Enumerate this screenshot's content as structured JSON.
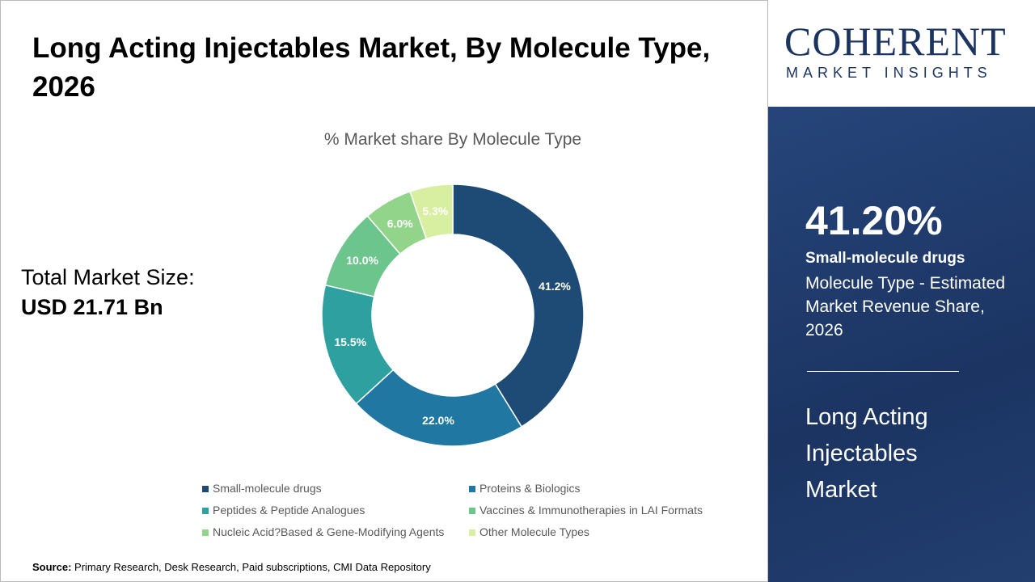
{
  "title": "Long Acting Injectables Market, By Molecule Type, 2026",
  "total": {
    "label": "Total Market Size:",
    "value": "USD 21.71 Bn"
  },
  "source": {
    "label": "Source:",
    "text": " Primary Research, Desk Research, Paid subscriptions, CMI Data Repository"
  },
  "logo": {
    "brand": "COHERENT",
    "tagline": "MARKET INSIGHTS"
  },
  "panel": {
    "percent": "41.20%",
    "segment": "Small-molecule drugs",
    "description": "Molecule Type - Estimated Market Revenue Share, 2026",
    "market": "Long Acting Injectables Market"
  },
  "chart_data": {
    "type": "pie",
    "donut": true,
    "title": "% Market share By Molecule Type",
    "legend_position": "bottom",
    "categories": [
      "Small-molecule drugs",
      "Proteins & Biologics",
      "Peptides & Peptide Analogues",
      "Vaccines & Immunotherapies in LAI Formats",
      "Nucleic Acid?Based & Gene-Modifying Agents",
      "Other Molecule Types"
    ],
    "values": [
      41.2,
      22.0,
      15.5,
      10.0,
      6.0,
      5.3
    ],
    "labels": [
      "41.2%",
      "22.0%",
      "15.5%",
      "10.0%",
      "6.0%",
      "5.3%"
    ],
    "colors": [
      "#1d4b75",
      "#1f77a2",
      "#2fa0a0",
      "#6cc58d",
      "#93d48b",
      "#d8efa2"
    ]
  }
}
